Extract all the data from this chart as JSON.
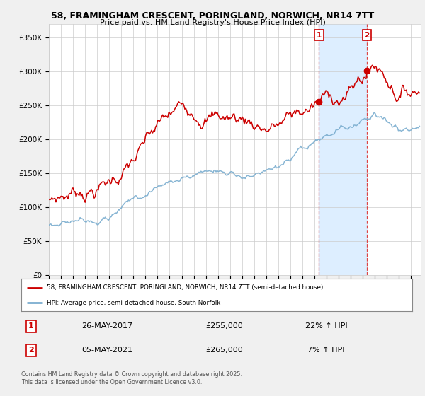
{
  "title": "58, FRAMINGHAM CRESCENT, PORINGLAND, NORWICH, NR14 7TT",
  "subtitle": "Price paid vs. HM Land Registry's House Price Index (HPI)",
  "ylabel_ticks": [
    "£0",
    "£50K",
    "£100K",
    "£150K",
    "£200K",
    "£250K",
    "£300K",
    "£350K"
  ],
  "ytick_values": [
    0,
    50000,
    100000,
    150000,
    200000,
    250000,
    300000,
    350000
  ],
  "ylim": [
    0,
    370000
  ],
  "xlim_start": 1995.0,
  "xlim_end": 2025.8,
  "sale1_date": 2017.38,
  "sale1_price": 255000,
  "sale1_label": "1",
  "sale1_hpi_pct": "22% ↑ HPI",
  "sale1_date_str": "26-MAY-2017",
  "sale2_date": 2021.35,
  "sale2_price": 265000,
  "sale2_label": "2",
  "sale2_hpi_pct": "7% ↑ HPI",
  "sale2_date_str": "05-MAY-2021",
  "legend_line1": "58, FRAMINGHAM CRESCENT, PORINGLAND, NORWICH, NR14 7TT (semi-detached house)",
  "legend_line2": "HPI: Average price, semi-detached house, South Norfolk",
  "footer": "Contains HM Land Registry data © Crown copyright and database right 2025.\nThis data is licensed under the Open Government Licence v3.0.",
  "red_color": "#cc0000",
  "blue_color": "#7aadcf",
  "shade_color": "#ddeeff",
  "background_color": "#f0f0f0",
  "plot_bg": "#ffffff",
  "vline_color": "#dd4444",
  "grid_color": "#cccccc"
}
